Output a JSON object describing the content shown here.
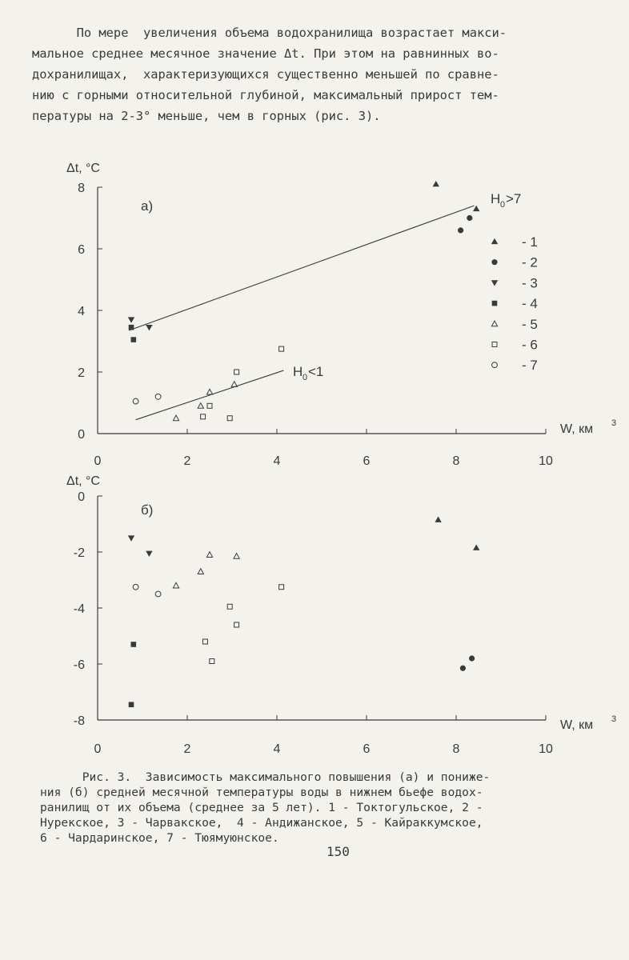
{
  "paragraph": [
    "      По мере  увеличения объема водохранилища возрастает макси-",
    "мальное среднее месячное значение Δt. При этом на равнинных во-",
    "дохранилищах,  характеризующихся существенно меньшей по сравне-",
    "нию с горными относительной глубиной, максимальный прирост тем-",
    "пературы на 2-3° меньше, чем в горных (рис. 3)."
  ],
  "chart_data": [
    {
      "type": "scatter",
      "panel_label": "а)",
      "ylabel": "Δt, °C",
      "xlabel": "W, км³",
      "xlim": [
        0,
        10
      ],
      "ylim": [
        0,
        8
      ],
      "xticks": [
        "0",
        "2",
        "4",
        "6",
        "8",
        "10"
      ],
      "yticks": [
        "0",
        "2",
        "4",
        "6",
        "8"
      ],
      "legend_position": "right",
      "series": [
        {
          "name": "1",
          "marker": "triangle-up",
          "points": [
            [
              7.55,
              8.1
            ],
            [
              8.45,
              7.3
            ]
          ]
        },
        {
          "name": "2",
          "marker": "circle-filled",
          "points": [
            [
              8.1,
              6.6
            ],
            [
              8.3,
              7.0
            ]
          ]
        },
        {
          "name": "3",
          "marker": "triangle-down",
          "points": [
            [
              0.75,
              3.7
            ],
            [
              1.15,
              3.45
            ]
          ]
        },
        {
          "name": "4",
          "marker": "square-filled",
          "points": [
            [
              0.75,
              3.45
            ],
            [
              0.8,
              3.05
            ]
          ]
        },
        {
          "name": "5",
          "marker": "triangle-up-open",
          "points": [
            [
              1.75,
              0.5
            ],
            [
              2.3,
              0.9
            ],
            [
              2.5,
              1.35
            ],
            [
              3.05,
              1.6
            ]
          ]
        },
        {
          "name": "6",
          "marker": "square-open",
          "points": [
            [
              2.35,
              0.55
            ],
            [
              2.5,
              0.9
            ],
            [
              2.95,
              0.5
            ],
            [
              3.1,
              2.0
            ],
            [
              4.1,
              2.75
            ]
          ]
        },
        {
          "name": "7",
          "marker": "circle-open",
          "points": [
            [
              0.85,
              1.05
            ],
            [
              1.35,
              1.2
            ]
          ]
        }
      ],
      "trend_lines": [
        {
          "label": "H",
          "subscript": "0",
          "suffix": ">7",
          "from": [
            0.7,
            3.35
          ],
          "to": [
            8.4,
            7.4
          ]
        },
        {
          "label": "H",
          "subscript": "0",
          "suffix": "<1",
          "from": [
            0.85,
            0.45
          ],
          "to": [
            4.15,
            2.05
          ]
        }
      ]
    },
    {
      "type": "scatter",
      "panel_label": "б)",
      "ylabel": "Δt, °C",
      "xlabel": "W, км³",
      "xlim": [
        0,
        10
      ],
      "ylim": [
        -8,
        0
      ],
      "xticks": [
        "0",
        "2",
        "4",
        "6",
        "8",
        "10"
      ],
      "yticks": [
        "0",
        "-2",
        "-4",
        "-6",
        "-8"
      ],
      "series": [
        {
          "name": "1",
          "marker": "triangle-up",
          "points": [
            [
              7.6,
              -0.85
            ],
            [
              8.45,
              -1.85
            ]
          ]
        },
        {
          "name": "2",
          "marker": "circle-filled",
          "points": [
            [
              8.15,
              -6.15
            ],
            [
              8.35,
              -5.8
            ]
          ]
        },
        {
          "name": "3",
          "marker": "triangle-down",
          "points": [
            [
              0.75,
              -1.5
            ],
            [
              1.15,
              -2.05
            ]
          ]
        },
        {
          "name": "4",
          "marker": "square-filled",
          "points": [
            [
              0.8,
              -5.3
            ],
            [
              0.75,
              -7.45
            ]
          ]
        },
        {
          "name": "5",
          "marker": "triangle-up-open",
          "points": [
            [
              1.75,
              -3.2
            ],
            [
              2.3,
              -2.7
            ],
            [
              2.5,
              -2.1
            ],
            [
              3.1,
              -2.15
            ]
          ]
        },
        {
          "name": "6",
          "marker": "square-open",
          "points": [
            [
              2.4,
              -5.2
            ],
            [
              2.95,
              -3.95
            ],
            [
              3.1,
              -4.6
            ],
            [
              4.1,
              -3.25
            ],
            [
              2.55,
              -5.9
            ]
          ]
        },
        {
          "name": "7",
          "marker": "circle-open",
          "points": [
            [
              0.85,
              -3.25
            ],
            [
              1.35,
              -3.5
            ]
          ]
        }
      ]
    }
  ],
  "caption": [
    "      Рис. 3.  Зависимость максимального повышения (а) и пониже-",
    "ния (б) средней месячной температуры воды в нижнем бьефе водох-",
    "ранилищ от их объема (среднее за 5 лет). 1 - Токтогульское, 2 -",
    "Нурекское, 3 - Чарвакское,  4 - Андижанское, 5 - Кайраккумское,",
    "6 - Чардаринское, 7 - Тюямуюнское."
  ],
  "page_number": "150",
  "colors": {
    "ink": "#3a3a3a",
    "paper": "#f3f2ec",
    "light_marker": "#8a8a8a"
  }
}
